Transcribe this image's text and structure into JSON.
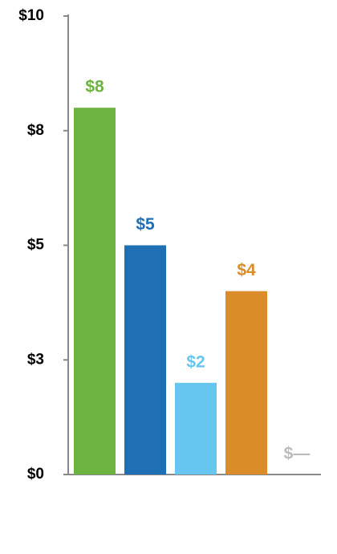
{
  "chart_data": {
    "type": "bar",
    "categories": [
      null,
      null,
      null,
      null,
      null
    ],
    "values": [
      8,
      5,
      2,
      4,
      null
    ],
    "value_labels": [
      "$8",
      "$5",
      "$2",
      "$4",
      "$—"
    ],
    "colors": [
      "#6cb33f",
      "#1f6fb5",
      "#66c6f0",
      "#d98c27",
      "#bbbbbb"
    ],
    "ylim": [
      0,
      10
    ],
    "yticks": [
      {
        "value": 0,
        "label": "$0"
      },
      {
        "value": 2.5,
        "label": "$3"
      },
      {
        "value": 5,
        "label": "$5"
      },
      {
        "value": 7.5,
        "label": "$8"
      },
      {
        "value": 10,
        "label": "$10"
      }
    ]
  }
}
